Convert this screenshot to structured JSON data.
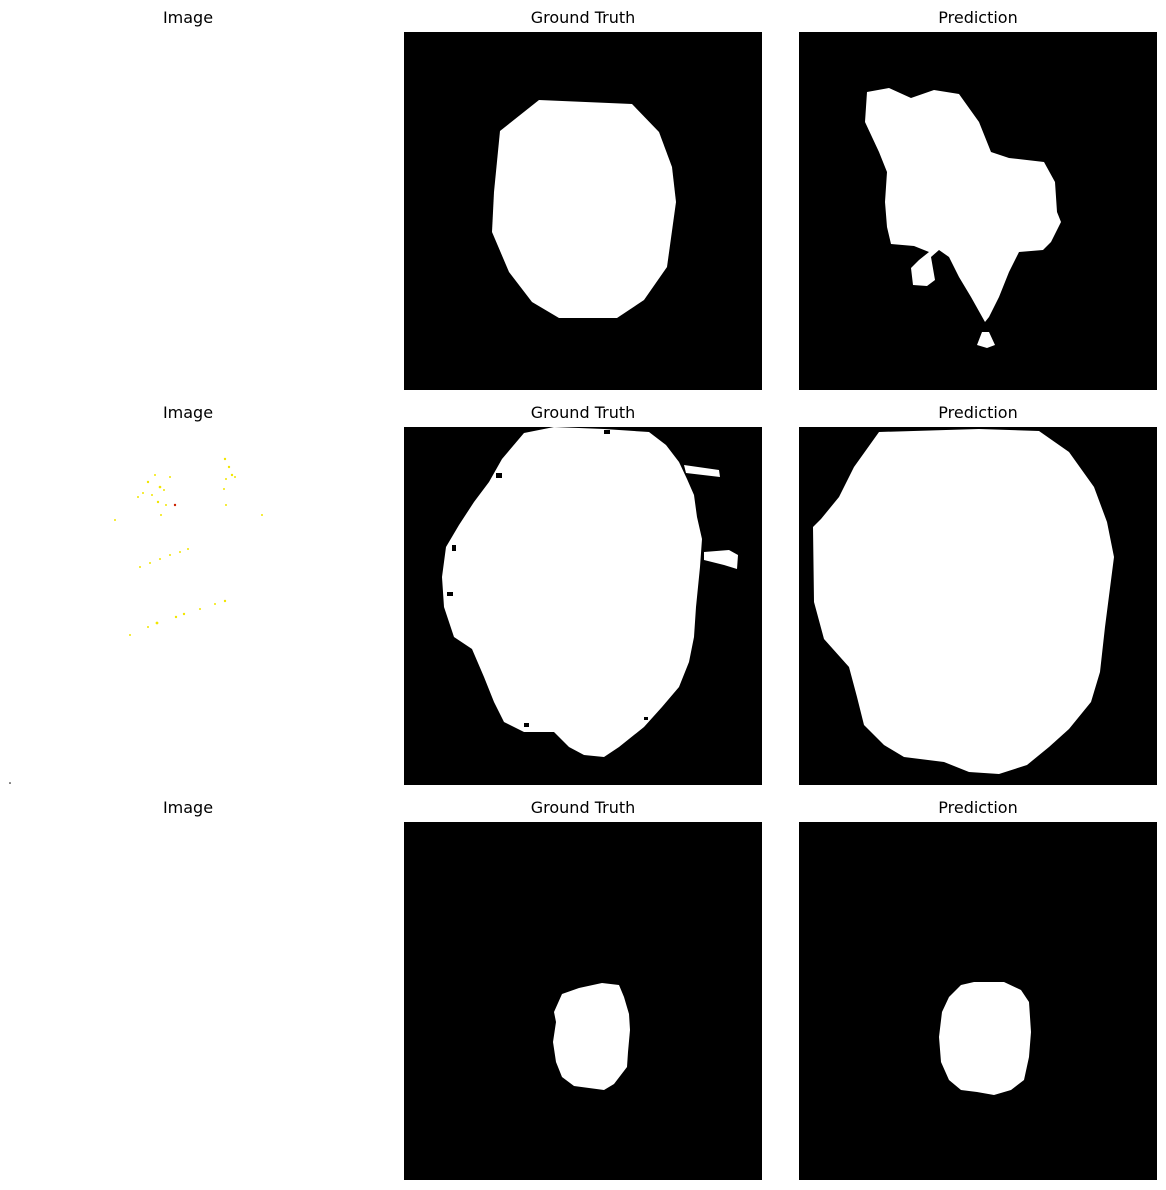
{
  "figure": {
    "rows": [
      {
        "titles": [
          "Image",
          "Ground Truth",
          "Prediction"
        ]
      },
      {
        "titles": [
          "Image",
          "Ground Truth",
          "Prediction"
        ]
      },
      {
        "titles": [
          "Image",
          "Ground Truth",
          "Prediction"
        ]
      }
    ],
    "colors": {
      "background": "#ffffff",
      "mask_background": "#000000",
      "mask_foreground": "#ffffff",
      "speckle": "#ffff00"
    }
  }
}
